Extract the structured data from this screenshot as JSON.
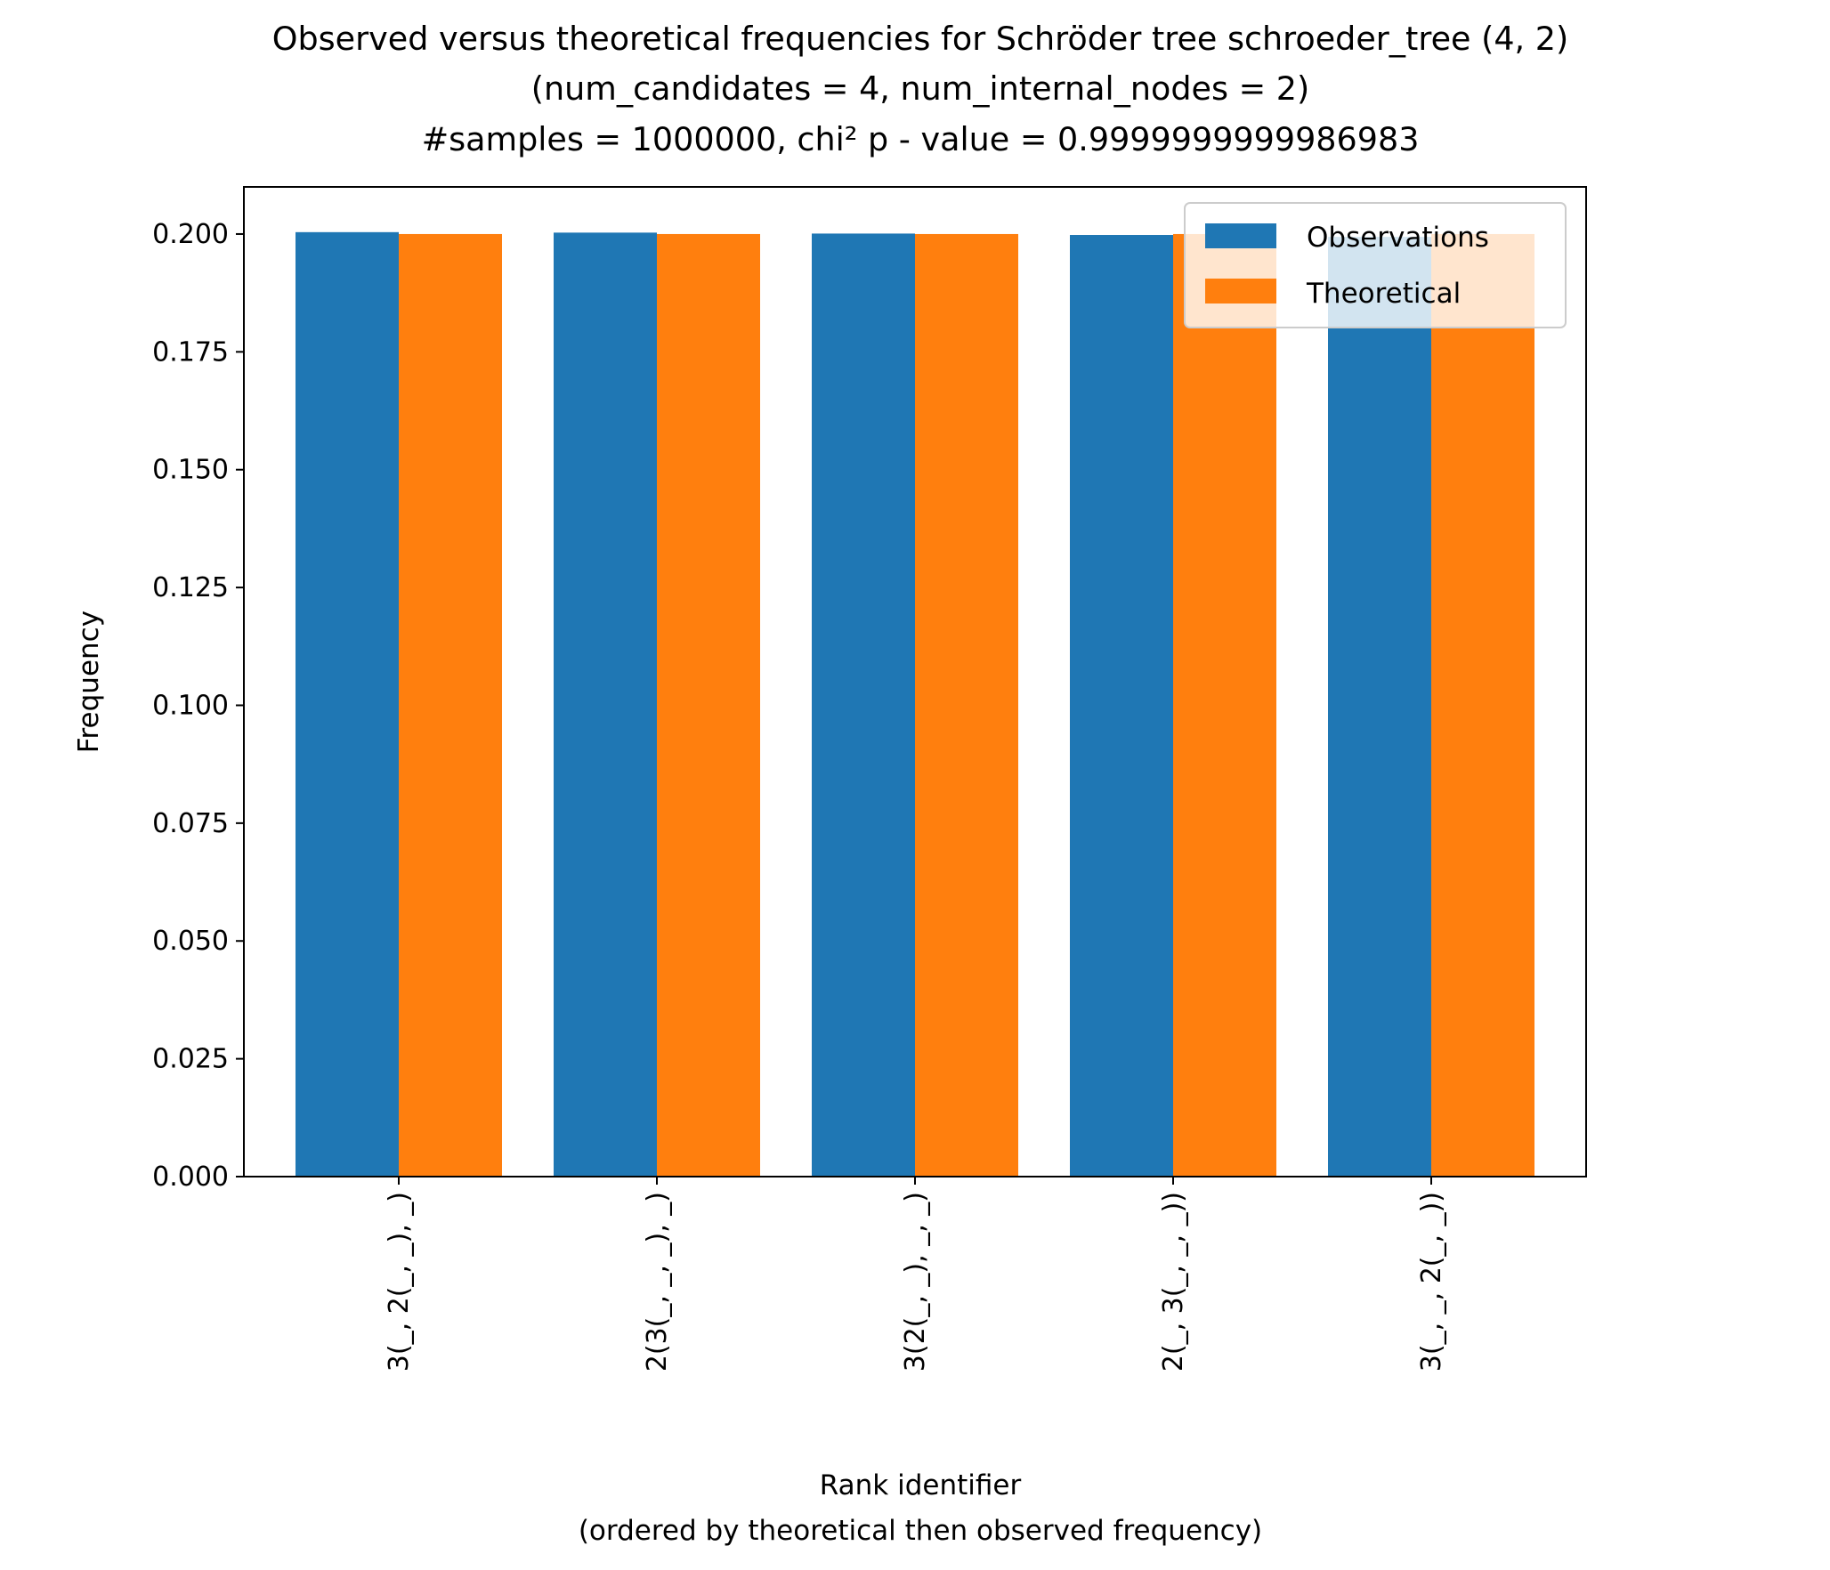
{
  "chart_data": {
    "type": "bar",
    "title": [
      "Observed versus theoretical frequencies for Schröder tree schroeder_tree (4, 2)",
      "(num_candidates = 4, num_internal_nodes = 2)",
      "#samples = 1000000, chi² p - value = 0.9999999999986983"
    ],
    "xlabel": [
      "Rank identifier",
      "(ordered by theoretical then observed frequency)"
    ],
    "ylabel": "Frequency",
    "categories": [
      "3(_, 2(_, _), _)",
      "2(3(_, _, _), _)",
      "3(2(_, _), _, _)",
      "2(_, 3(_, _, _))",
      "3(_, _, 2(_, _))"
    ],
    "series": [
      {
        "name": "Observations",
        "color": "#1f77b4",
        "values": [
          0.2004,
          0.2003,
          0.2001,
          0.1998,
          0.1994
        ]
      },
      {
        "name": "Theoretical",
        "color": "#ff7f0e",
        "values": [
          0.2,
          0.2,
          0.2,
          0.2,
          0.2
        ]
      }
    ],
    "ylim": [
      0,
      0.21
    ],
    "yticks": [
      "0.000",
      "0.025",
      "0.050",
      "0.075",
      "0.100",
      "0.125",
      "0.150",
      "0.175",
      "0.200"
    ],
    "grid": false,
    "legend_position": "upper right"
  }
}
